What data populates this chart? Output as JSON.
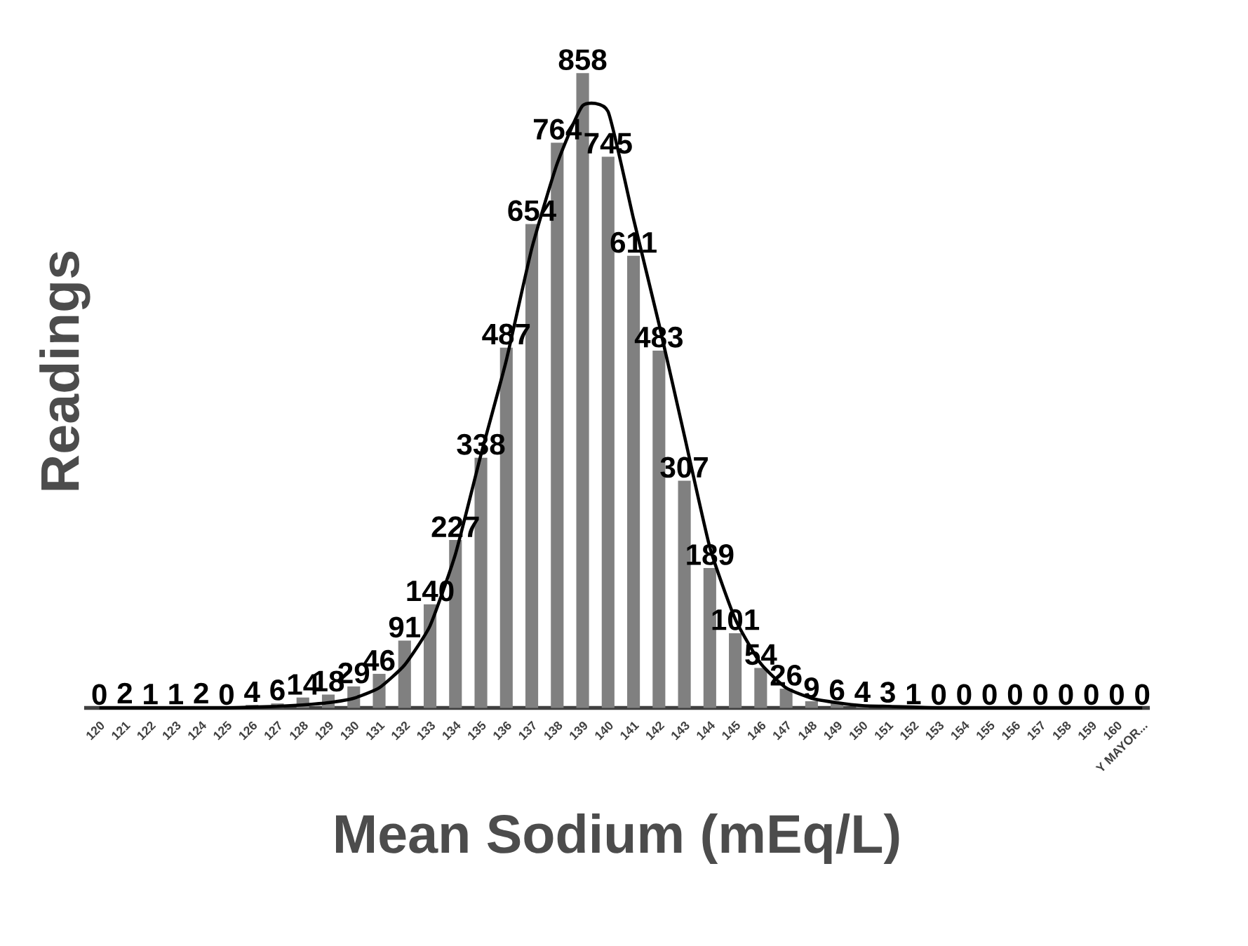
{
  "chart_data": {
    "type": "bar",
    "xlabel": "Mean Sodium (mEq/L)",
    "ylabel": "Readings",
    "categories": [
      "120",
      "121",
      "122",
      "123",
      "124",
      "125",
      "126",
      "127",
      "128",
      "129",
      "130",
      "131",
      "132",
      "133",
      "134",
      "135",
      "136",
      "137",
      "138",
      "139",
      "140",
      "141",
      "142",
      "143",
      "144",
      "145",
      "146",
      "147",
      "148",
      "149",
      "150",
      "151",
      "152",
      "153",
      "154",
      "155",
      "156",
      "157",
      "158",
      "159",
      "160",
      "Y MAYOR..."
    ],
    "series": [
      {
        "color": "#808080",
        "values": [
          0,
          2,
          1,
          1,
          2,
          0,
          4,
          6,
          14,
          18,
          29,
          46,
          91,
          140,
          227,
          338,
          487,
          654,
          764,
          858,
          745,
          611,
          483,
          307,
          189,
          101,
          54,
          26,
          9,
          6,
          4,
          3,
          1,
          0,
          0,
          0,
          0,
          0,
          0,
          0,
          0,
          0
        ],
        "value_labels": [
          "0",
          "2",
          "1",
          "1",
          "2",
          "0",
          "4",
          "6",
          "14",
          "18",
          "29",
          "46",
          "91",
          "140",
          "227",
          "338",
          "487",
          "654",
          "764",
          "858",
          "745",
          "611",
          "483",
          "307",
          "189",
          "101",
          "54",
          "26",
          "9",
          "6",
          "4",
          "3",
          "1",
          "0",
          "0",
          "0",
          "0",
          "0",
          "0",
          "0",
          "0",
          "0"
        ]
      },
      {
        "type": "line",
        "color": "#000000",
        "values": [
          0,
          0,
          0,
          0,
          0,
          0,
          1,
          2,
          4,
          7,
          13,
          27,
          58,
          111,
          208,
          342,
          470,
          621,
          736,
          814,
          806,
          661,
          519,
          368,
          217,
          120,
          60,
          27,
          13,
          7,
          3,
          2,
          1,
          0,
          0,
          0,
          0,
          0,
          0,
          0,
          0,
          0
        ]
      }
    ]
  }
}
